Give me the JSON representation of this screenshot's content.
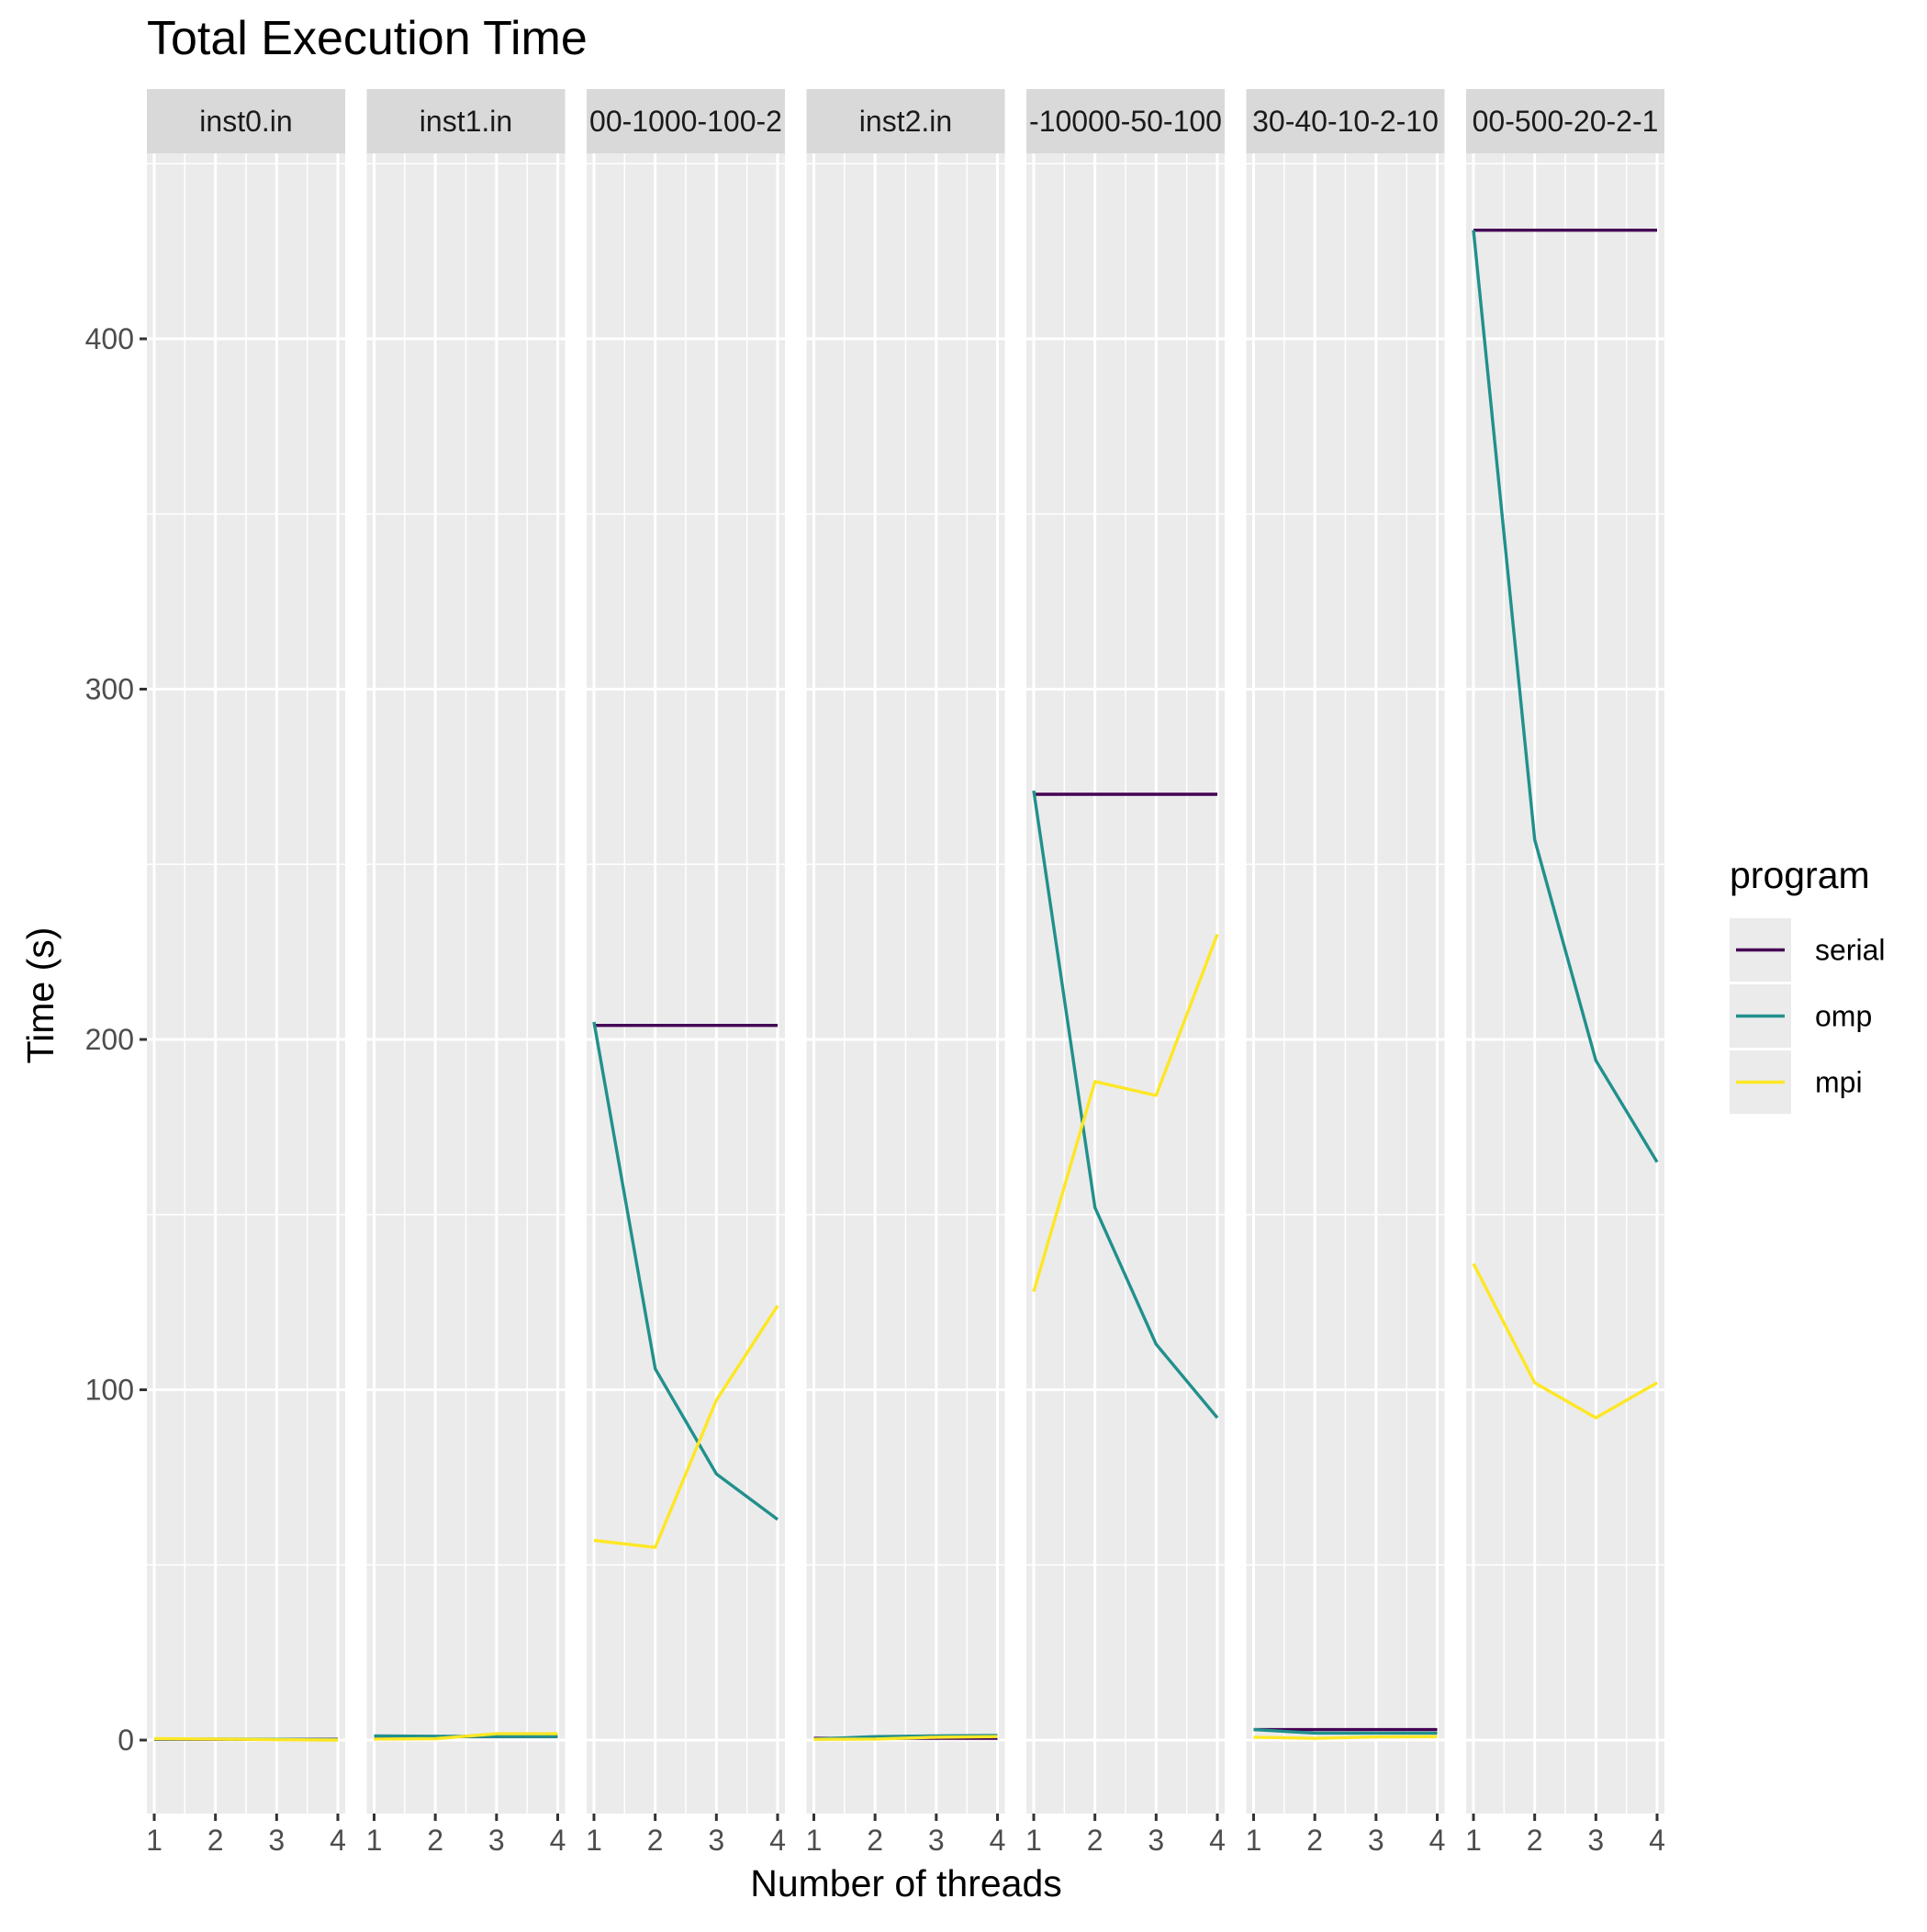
{
  "chart_data": {
    "type": "line",
    "title": "Total Execution Time",
    "xlabel": "Number of threads",
    "ylabel": "Time (s)",
    "x": [
      1,
      2,
      3,
      4
    ],
    "x_ticks": [
      "1",
      "2",
      "3",
      "4"
    ],
    "ylim": [
      -22,
      455
    ],
    "y_ticks": [
      0,
      100,
      200,
      300,
      400
    ],
    "grid": true,
    "legend": {
      "title": "program",
      "position": "right",
      "items": [
        {
          "name": "serial",
          "color": "#440154"
        },
        {
          "name": "omp",
          "color": "#21908C"
        },
        {
          "name": "mpi",
          "color": "#FDE725"
        }
      ]
    },
    "facets": [
      {
        "label": "inst0.in",
        "series": [
          {
            "name": "serial",
            "values": [
              0.2,
              0.2,
              0.2,
              0.2
            ]
          },
          {
            "name": "omp",
            "values": [
              0.3,
              0.3,
              0.2,
              0.1
            ]
          },
          {
            "name": "mpi",
            "values": [
              0.4,
              0.3,
              0.1,
              0.0
            ]
          }
        ]
      },
      {
        "label": "inst1.in",
        "series": [
          {
            "name": "serial",
            "values": [
              1.0,
              1.0,
              1.0,
              1.0
            ]
          },
          {
            "name": "omp",
            "values": [
              1.2,
              1.1,
              1.0,
              1.0
            ]
          },
          {
            "name": "mpi",
            "values": [
              0.3,
              0.4,
              1.8,
              1.8
            ]
          }
        ]
      },
      {
        "label": "00-1000-100-2",
        "series": [
          {
            "name": "serial",
            "values": [
              204,
              204,
              204,
              204
            ]
          },
          {
            "name": "omp",
            "values": [
              205,
              106,
              76,
              63
            ]
          },
          {
            "name": "mpi",
            "values": [
              57,
              55,
              97,
              124
            ]
          }
        ]
      },
      {
        "label": "inst2.in",
        "series": [
          {
            "name": "serial",
            "values": [
              0.5,
              0.5,
              0.5,
              0.5
            ]
          },
          {
            "name": "omp",
            "values": [
              0.3,
              1.0,
              1.2,
              1.3
            ]
          },
          {
            "name": "mpi",
            "values": [
              0.2,
              0.3,
              0.8,
              1.0
            ]
          }
        ]
      },
      {
        "label": "-10000-50-100",
        "series": [
          {
            "name": "serial",
            "values": [
              270,
              270,
              270,
              270
            ]
          },
          {
            "name": "omp",
            "values": [
              271,
              152,
              113,
              92
            ]
          },
          {
            "name": "mpi",
            "values": [
              128,
              188,
              184,
              230
            ]
          }
        ]
      },
      {
        "label": "30-40-10-2-10",
        "series": [
          {
            "name": "serial",
            "values": [
              3,
              3,
              3,
              3
            ]
          },
          {
            "name": "omp",
            "values": [
              3,
              2,
              2,
              2
            ]
          },
          {
            "name": "mpi",
            "values": [
              0.8,
              0.5,
              0.9,
              1.0
            ]
          }
        ]
      },
      {
        "label": "00-500-20-2-1",
        "series": [
          {
            "name": "serial",
            "values": [
              431,
              431,
              431,
              431
            ]
          },
          {
            "name": "omp",
            "values": [
              431,
              257,
              194,
              165
            ]
          },
          {
            "name": "mpi",
            "values": [
              136,
              102,
              92,
              102
            ]
          }
        ]
      }
    ]
  }
}
